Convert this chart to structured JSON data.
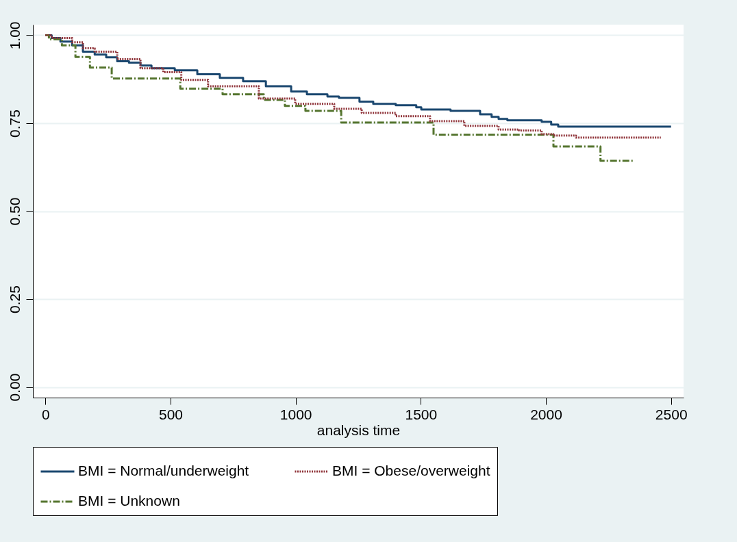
{
  "chart_data": {
    "type": "step",
    "xlabel": "analysis time",
    "xlim": [
      -50,
      2550
    ],
    "ylim": [
      -0.03,
      1.03
    ],
    "xticks": [
      0,
      500,
      1000,
      1500,
      2000,
      2500
    ],
    "yticks": [
      {
        "value": 0,
        "label": "0.00"
      },
      {
        "value": 0.25,
        "label": "0.25"
      },
      {
        "value": 0.5,
        "label": "0.50"
      },
      {
        "value": 0.75,
        "label": "0.75"
      },
      {
        "value": 1,
        "label": "1.00"
      }
    ],
    "grid": "y",
    "legend": "bottom",
    "marker": "none",
    "series": [
      {
        "name": "BMI = Normal/underweight",
        "color": "#1a476f",
        "line_style": "solid",
        "x": [
          0,
          25,
          60,
          107,
          150,
          197,
          243,
          287,
          334,
          380,
          424,
          517,
          607,
          697,
          790,
          881,
          982,
          1045,
          1127,
          1173,
          1255,
          1310,
          1400,
          1482,
          1502,
          1619,
          1737,
          1783,
          1811,
          1846,
          1983,
          2021,
          2049,
          2500
        ],
        "values": [
          1,
          0.992,
          0.982,
          0.971,
          0.953,
          0.945,
          0.937,
          0.926,
          0.922,
          0.914,
          0.906,
          0.9,
          0.889,
          0.879,
          0.869,
          0.855,
          0.84,
          0.832,
          0.826,
          0.822,
          0.811,
          0.805,
          0.801,
          0.795,
          0.789,
          0.785,
          0.775,
          0.768,
          0.762,
          0.758,
          0.754,
          0.746,
          0.74,
          0.74
        ]
      },
      {
        "name": "BMI = Obese/overweight",
        "color": "#90353b",
        "line_style": "dotted",
        "x": [
          0,
          25,
          107,
          150,
          197,
          287,
          380,
          471,
          543,
          650,
          853,
          998,
          1154,
          1264,
          1400,
          1537,
          1674,
          1811,
          1893,
          1983,
          2030,
          2120,
          2459
        ],
        "values": [
          1,
          0.992,
          0.98,
          0.963,
          0.953,
          0.932,
          0.906,
          0.895,
          0.873,
          0.855,
          0.82,
          0.805,
          0.791,
          0.779,
          0.77,
          0.756,
          0.742,
          0.732,
          0.729,
          0.719,
          0.715,
          0.709,
          0.709
        ]
      },
      {
        "name": "BMI = Unknown",
        "color": "#55752f",
        "line_style": "dashed",
        "x": [
          0,
          14,
          66,
          120,
          178,
          265,
          539,
          708,
          873,
          957,
          1039,
          1182,
          1551,
          2030,
          2218,
          2350
        ],
        "values": [
          1,
          0.988,
          0.971,
          0.938,
          0.908,
          0.877,
          0.848,
          0.832,
          0.816,
          0.799,
          0.785,
          0.752,
          0.717,
          0.684,
          0.643,
          0.643
        ]
      }
    ]
  }
}
